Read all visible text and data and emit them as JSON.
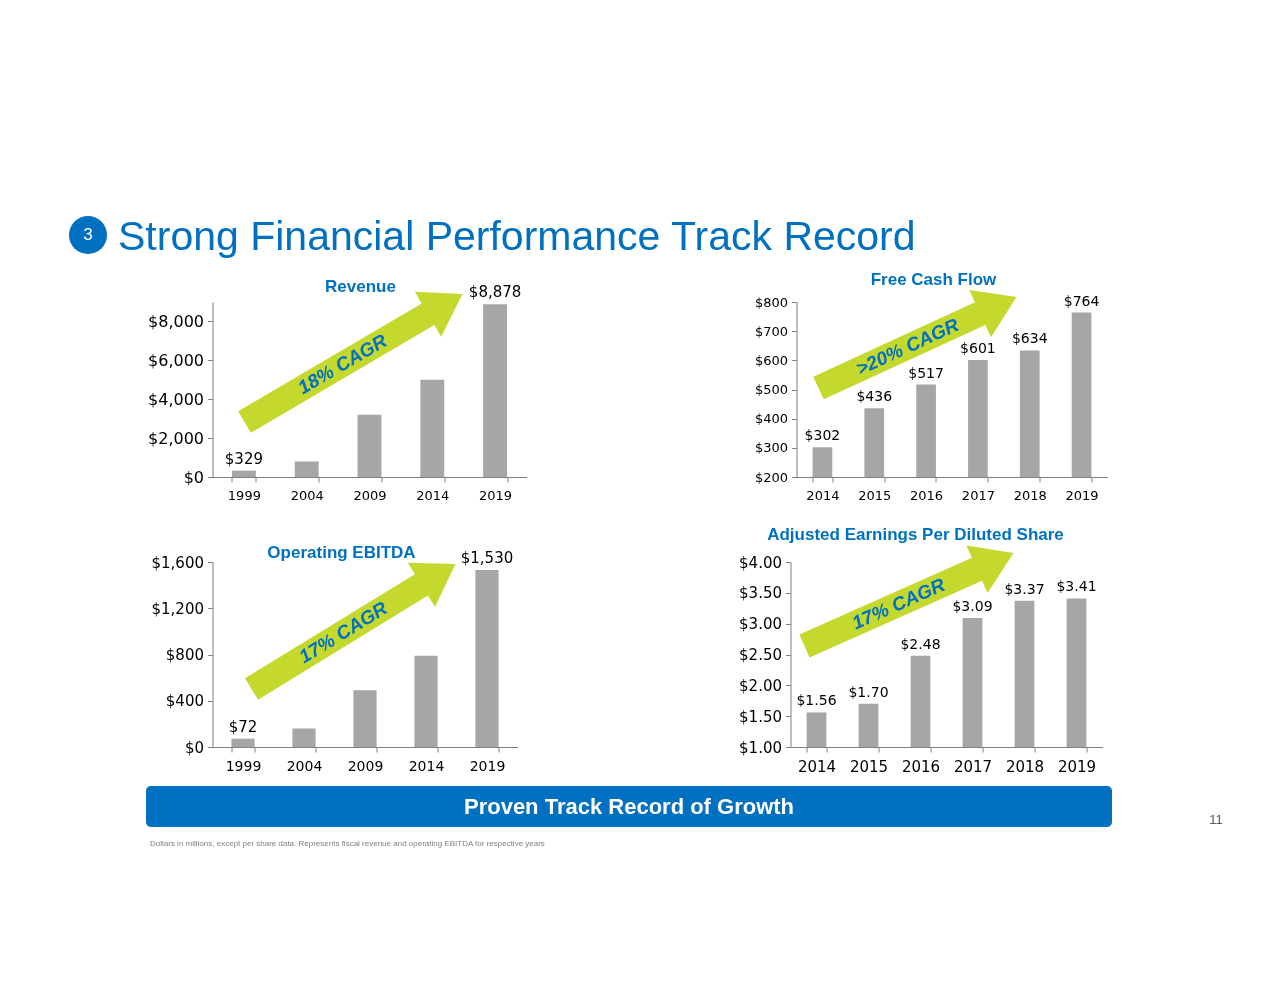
{
  "chart_data": [
    {
      "type": "other",
      "title": "Strong Financial Performance Track Record",
      "annotations": [
        "3"
      ]
    },
    {
      "type": "bar",
      "title": "Revenue",
      "categories": [
        "1999",
        "2004",
        "2009",
        "2014",
        "2019"
      ],
      "values": [
        329,
        800,
        3200,
        5000,
        8878
      ],
      "color": "#a6a6a6",
      "value_labels": [
        "$329",
        null,
        null,
        null,
        "$8,878"
      ],
      "ylim": [
        0,
        9000
      ],
      "yticks": [
        {
          "value": 0,
          "label": "$0"
        },
        {
          "value": 2000,
          "label": "$2,000"
        },
        {
          "value": 4000,
          "label": "$4,000"
        },
        {
          "value": 6000,
          "label": "$6,000"
        },
        {
          "value": 8000,
          "label": "$8,000"
        }
      ],
      "annotations": [
        "18% CAGR"
      ]
    },
    {
      "type": "bar",
      "title": "Free Cash Flow",
      "categories": [
        "2014",
        "2015",
        "2016",
        "2017",
        "2018",
        "2019"
      ],
      "values": [
        302,
        436,
        517,
        601,
        634,
        764
      ],
      "color": "#a6a6a6",
      "value_labels": [
        "$302",
        "$436",
        "$517",
        "$601",
        "$634",
        "$764"
      ],
      "ylim": [
        200,
        800
      ],
      "yticks": [
        {
          "value": 200,
          "label": "$200"
        },
        {
          "value": 300,
          "label": "$300"
        },
        {
          "value": 400,
          "label": "$400"
        },
        {
          "value": 500,
          "label": "$500"
        },
        {
          "value": 600,
          "label": "$600"
        },
        {
          "value": 700,
          "label": "$700"
        },
        {
          "value": 800,
          "label": "$800"
        }
      ],
      "annotations": [
        ">20% CAGR"
      ]
    },
    {
      "type": "bar",
      "title": "Operating EBITDA",
      "categories": [
        "1999",
        "2004",
        "2009",
        "2014",
        "2019"
      ],
      "values": [
        72,
        160,
        490,
        790,
        1530
      ],
      "color": "#a6a6a6",
      "value_labels": [
        "$72",
        null,
        null,
        null,
        "$1,530"
      ],
      "ylim": [
        0,
        1600
      ],
      "yticks": [
        {
          "value": 0,
          "label": "$0"
        },
        {
          "value": 400,
          "label": "$400"
        },
        {
          "value": 800,
          "label": "$800"
        },
        {
          "value": 1200,
          "label": "$1,200"
        },
        {
          "value": 1600,
          "label": "$1,600"
        }
      ],
      "annotations": [
        "17% CAGR"
      ]
    },
    {
      "type": "bar",
      "title": "Adjusted Earnings Per Diluted Share",
      "categories": [
        "2014",
        "2015",
        "2016",
        "2017",
        "2018",
        "2019"
      ],
      "values": [
        1.56,
        1.7,
        2.48,
        3.09,
        3.37,
        3.41
      ],
      "color": "#a6a6a6",
      "value_labels": [
        "$1.56",
        "$1.70",
        "$2.48",
        "$3.09",
        "$3.37",
        "$3.41"
      ],
      "ylim": [
        1,
        4
      ],
      "yticks": [
        {
          "value": 1,
          "label": "$1.00"
        },
        {
          "value": 1.5,
          "label": "$1.50"
        },
        {
          "value": 2,
          "label": "$2.00"
        },
        {
          "value": 2.5,
          "label": "$2.50"
        },
        {
          "value": 3,
          "label": "$3.00"
        },
        {
          "value": 3.5,
          "label": "$3.50"
        },
        {
          "value": 4,
          "label": "$4.00"
        }
      ],
      "annotations": [
        "17% CAGR"
      ]
    },
    {
      "type": "other",
      "annotations": [
        "Proven Track Record of Growth",
        "11",
        "Dollars in millions, except per share data. Represents fiscal revenue and operating EBITDA for respective years"
      ]
    }
  ]
}
